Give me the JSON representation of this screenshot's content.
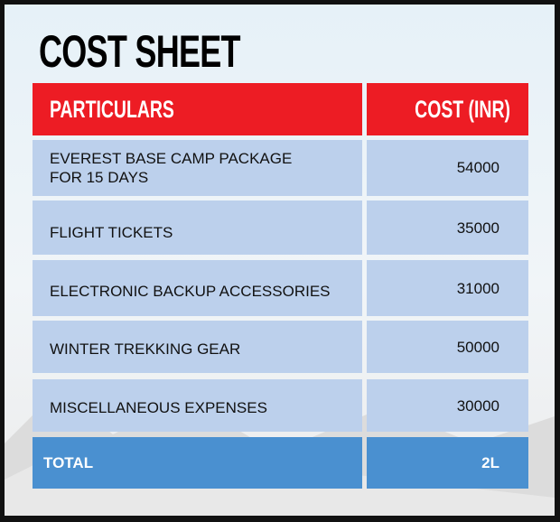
{
  "title": "COST SHEET",
  "table": {
    "headers": [
      "PARTICULARS",
      "COST (INR)"
    ],
    "rows": [
      {
        "item": "EVEREST BASE CAMP PACKAGE FOR 15 DAYS",
        "cost": "54000"
      },
      {
        "item": "FLIGHT TICKETS",
        "cost": "35000"
      },
      {
        "item": "ELECTRONIC BACKUP ACCESSORIES",
        "cost": "31000"
      },
      {
        "item": "WINTER TREKKING GEAR",
        "cost": "50000"
      },
      {
        "item": "MISCELLANEOUS EXPENSES",
        "cost": "30000"
      }
    ],
    "total": {
      "label": "TOTAL",
      "value": "2L"
    }
  },
  "colors": {
    "header": "#ed1c24",
    "row": "#bcd0ec",
    "total": "#4a90d0"
  }
}
